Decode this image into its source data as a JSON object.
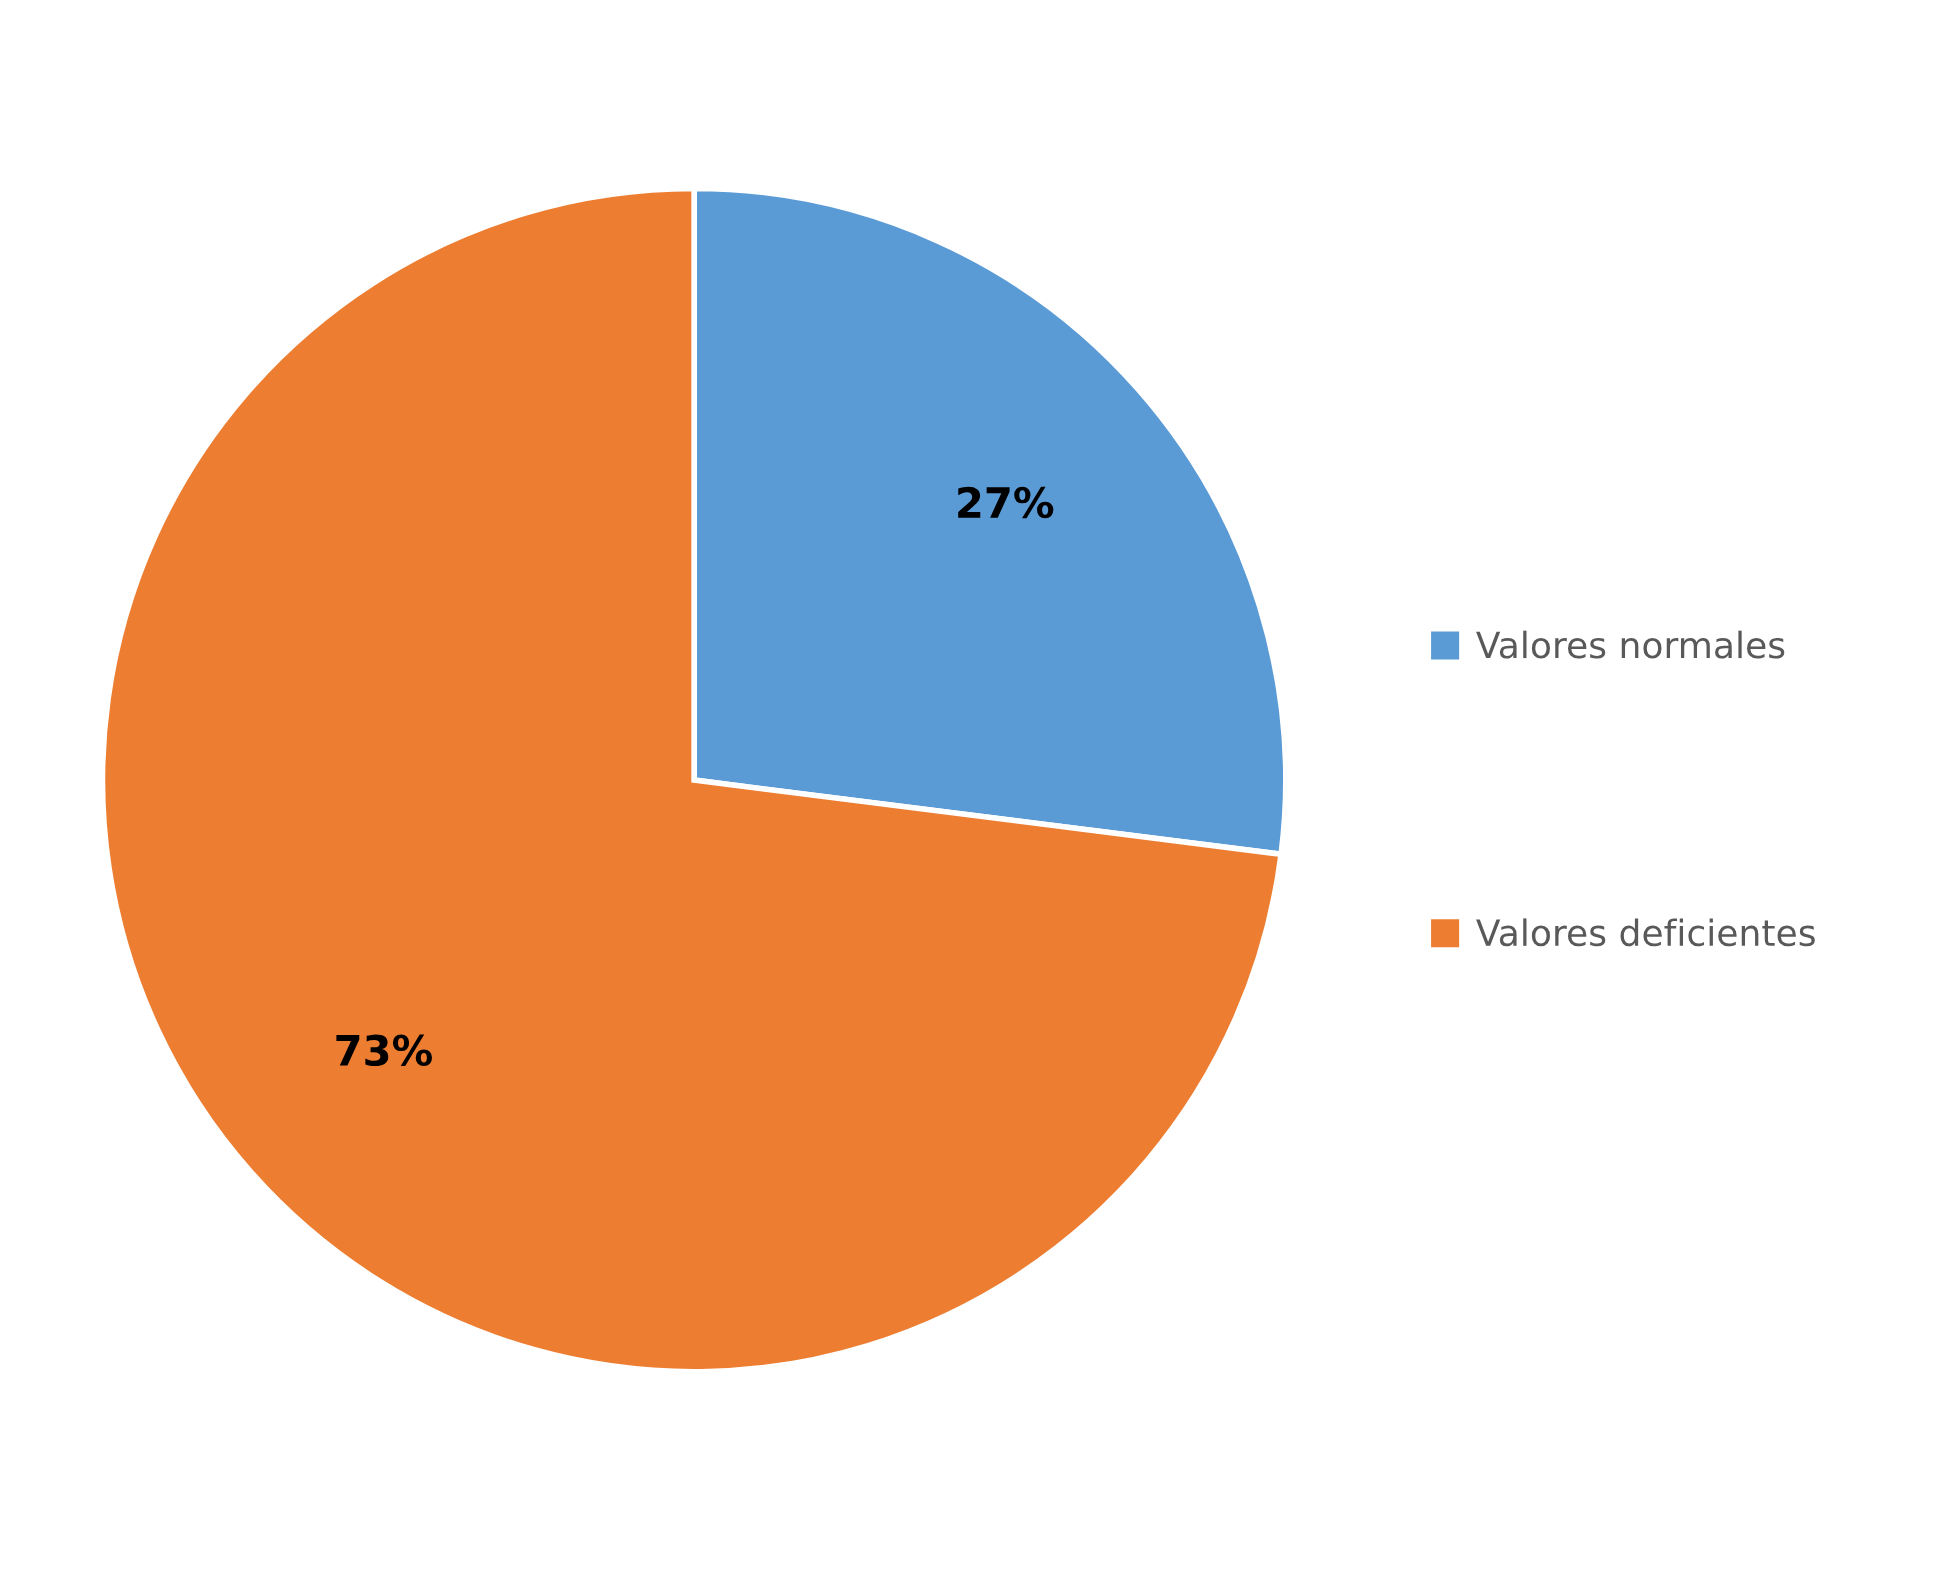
{
  "chart_data": {
    "type": "pie",
    "categories": [
      "Valores normales",
      "Valores deficientes"
    ],
    "values": [
      27,
      73
    ],
    "colors": [
      "#5b9bd5",
      "#ed7d31"
    ],
    "value_labels": [
      "27%",
      "73%"
    ],
    "legend": "right"
  }
}
